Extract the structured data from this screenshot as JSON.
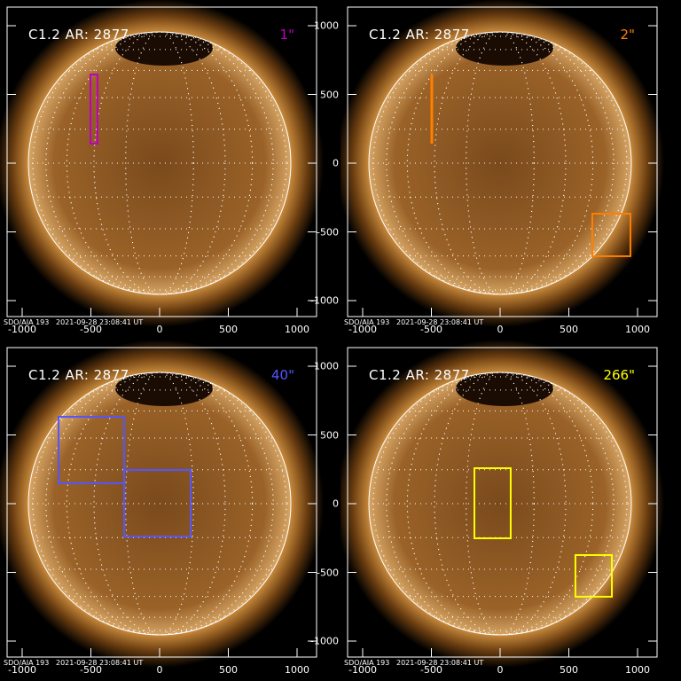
{
  "panels": [
    {
      "title": "C1.2 AR: 2877",
      "seconds": "1\"",
      "color": "#c000c0",
      "footer": "SDO/AIA 193   2021-09-28 23:08:41 UT",
      "boxes": [
        {
          "x": [
            -503,
            -452
          ],
          "y": [
            142,
            645
          ]
        }
      ],
      "line": null
    },
    {
      "title": "C1.2 AR: 2877",
      "seconds": "2\"",
      "color": "#ff7f00",
      "footer": "SDO/AIA 193   2021-09-28 23:08:41 UT",
      "boxes": [
        {
          "x": [
            671,
            948
          ],
          "y": [
            -677,
            -368
          ]
        }
      ],
      "line": {
        "x": -497,
        "y": [
          142,
          645
        ]
      }
    },
    {
      "title": "C1.2 AR: 2877",
      "seconds": "40\"",
      "color": "#5555ff",
      "footer": "SDO/AIA 193   2021-09-28 23:08:41 UT",
      "boxes": [
        {
          "x": [
            -735,
            -258
          ],
          "y": [
            148,
            632
          ]
        },
        {
          "x": [
            -258,
            226
          ],
          "y": [
            -239,
            245
          ]
        }
      ],
      "line": null
    },
    {
      "title": "C1.2 AR: 2877",
      "seconds": "266\"",
      "color": "#ffff00",
      "footer": "SDO/AIA 193   2021-09-28 23:08:41 UT",
      "boxes": [
        {
          "x": [
            -187,
            77
          ],
          "y": [
            -252,
            258
          ]
        },
        {
          "x": [
            548,
            813
          ],
          "y": [
            -677,
            -374
          ]
        }
      ],
      "line": null
    }
  ],
  "axes": {
    "x_ticks": [
      "-1000",
      "-500",
      "0",
      "500",
      "1000"
    ],
    "y_ticks": [
      "1000",
      "500",
      "0",
      "-500",
      "-1000"
    ],
    "units": "arcsec",
    "solar_radius": 960
  }
}
